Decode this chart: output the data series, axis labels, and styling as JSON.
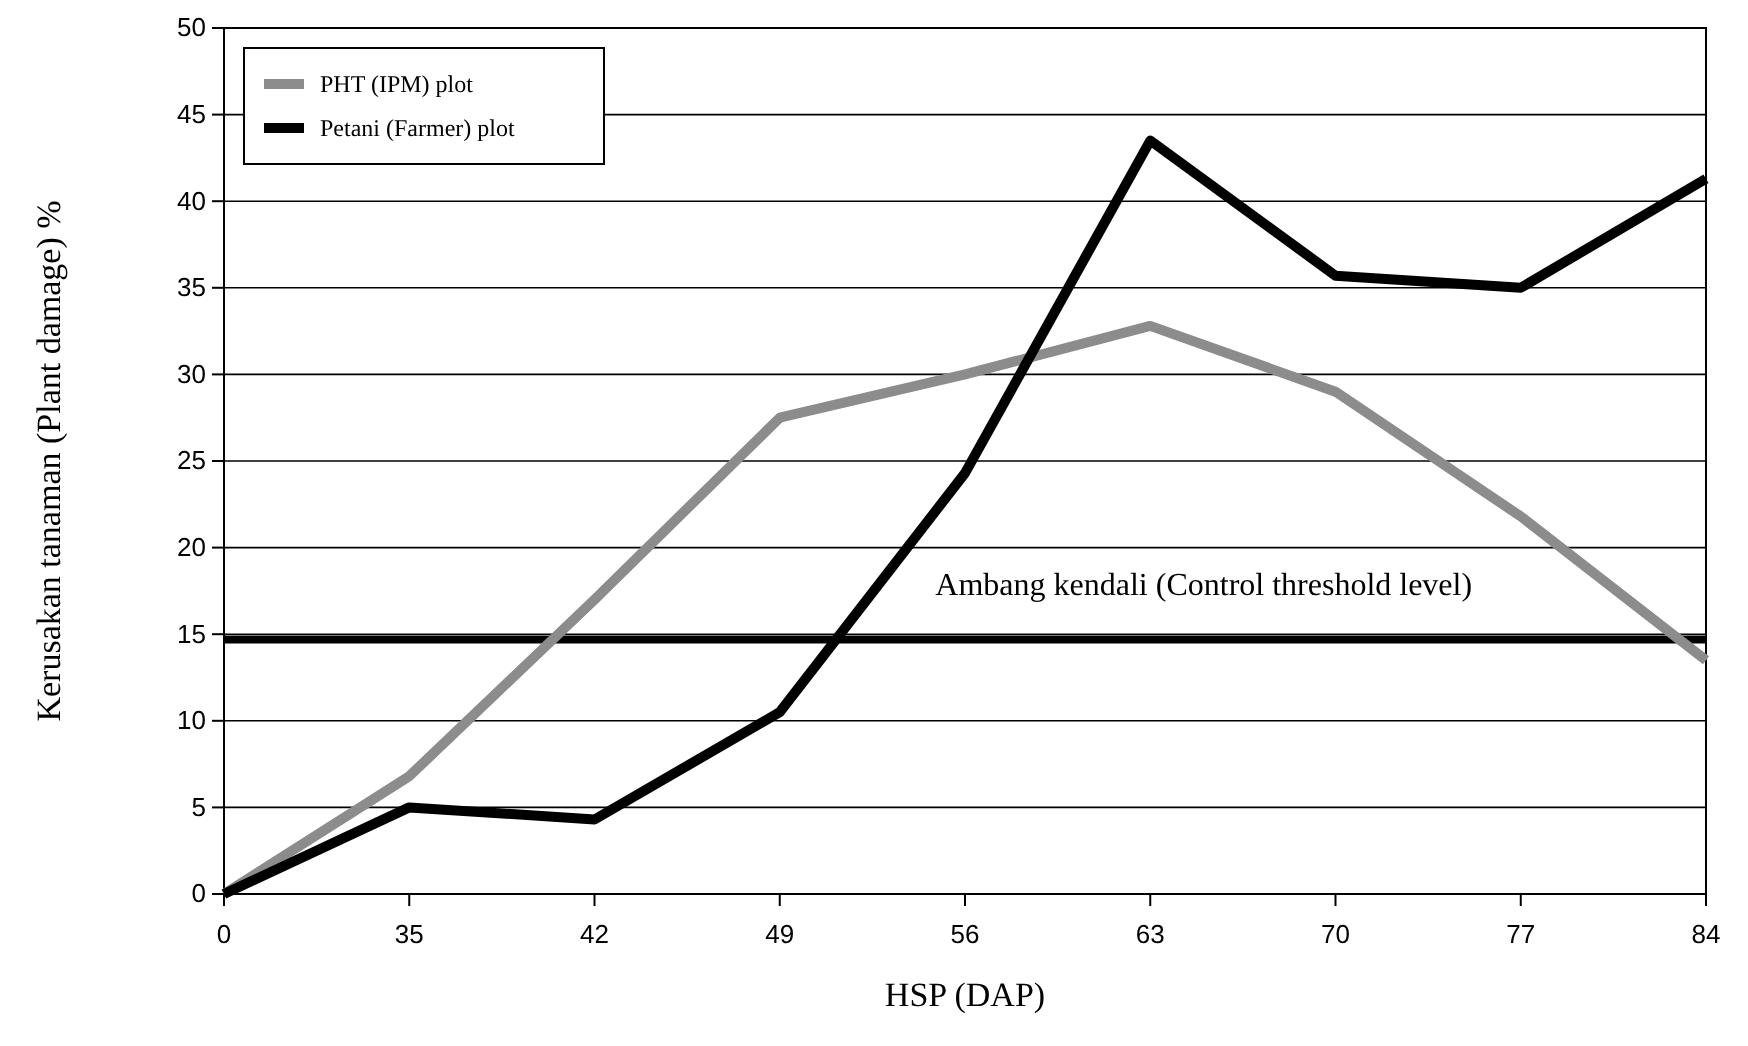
{
  "chart_data": {
    "type": "line",
    "xlabel": "HSP (DAP)",
    "ylabel": "Kerusakan tanaman (Plant damage) %",
    "categories": [
      "0",
      "35",
      "42",
      "49",
      "56",
      "63",
      "70",
      "77",
      "84"
    ],
    "series": [
      {
        "name": "PHT (IPM) plot",
        "color": "#8c8c8c",
        "values": [
          0,
          6.8,
          17,
          27.5,
          30,
          32.8,
          29,
          21.8,
          13.5
        ]
      },
      {
        "name": "Petani (Farmer) plot",
        "color": "#000000",
        "values": [
          0,
          5,
          4.3,
          10.5,
          24.3,
          43.5,
          35.7,
          35,
          41.3
        ]
      }
    ],
    "ylim": [
      0,
      50
    ],
    "yticks": [
      0,
      5,
      10,
      15,
      20,
      25,
      30,
      35,
      40,
      45,
      50
    ],
    "grid": "y",
    "legend": "top left",
    "marker": "none",
    "line_style": "solid",
    "ref_lines": [
      {
        "axis": "y",
        "value": 14.7,
        "label": "Ambang kendali (Control threshold level)",
        "color": "#000000"
      }
    ]
  }
}
